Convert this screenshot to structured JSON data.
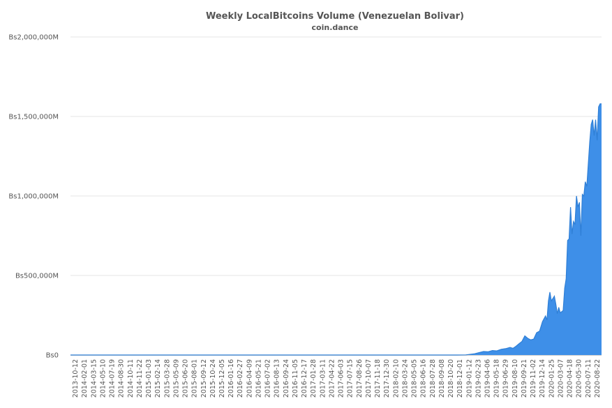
{
  "chart_data": {
    "type": "area",
    "title": "Weekly LocalBitcoins Volume (Venezuelan Bolivar)",
    "subtitle": "coin.dance",
    "xlabel": "",
    "ylabel": "",
    "ylim": [
      0,
      2000000000
    ],
    "y_ticks": [
      {
        "value": 0,
        "label": "Bs0"
      },
      {
        "value": 500000000,
        "label": "Bs500,000M"
      },
      {
        "value": 1000000000,
        "label": "Bs1,000,000M"
      },
      {
        "value": 1500000000,
        "label": "Bs1,500,000M"
      },
      {
        "value": 2000000000,
        "label": "Bs2,000,000M"
      }
    ],
    "x_range": [
      "2013-10-12",
      "2020-09-05"
    ],
    "x_tick_labels": [
      "2013-10-12",
      "2014-02-01",
      "2014-03-15",
      "2014-05-10",
      "2014-07-19",
      "2014-08-30",
      "2014-10-11",
      "2014-11-22",
      "2015-01-03",
      "2015-02-14",
      "2015-03-28",
      "2015-05-09",
      "2015-06-20",
      "2015-08-01",
      "2015-09-12",
      "2015-10-24",
      "2015-12-05",
      "2016-01-16",
      "2016-02-27",
      "2016-04-09",
      "2016-05-21",
      "2016-07-02",
      "2016-08-13",
      "2016-09-24",
      "2016-11-05",
      "2016-12-17",
      "2017-01-28",
      "2017-03-11",
      "2017-04-22",
      "2017-06-03",
      "2017-07-15",
      "2017-08-26",
      "2017-10-07",
      "2017-11-18",
      "2017-12-30",
      "2018-02-10",
      "2018-03-24",
      "2018-05-05",
      "2018-06-16",
      "2018-07-28",
      "2018-09-08",
      "2018-10-20",
      "2018-12-01",
      "2019-01-12",
      "2019-02-23",
      "2019-04-06",
      "2019-05-18",
      "2019-06-29",
      "2019-08-10",
      "2019-09-21",
      "2019-11-02",
      "2019-12-14",
      "2020-01-25",
      "2020-03-07",
      "2020-04-18",
      "2020-05-30",
      "2020-07-11",
      "2020-08-22"
    ],
    "grid": true,
    "legend": "none",
    "colors": {
      "area": "#3e8fe8",
      "line": "#2f7fd6"
    },
    "series": [
      {
        "points": [
          [
            "2013-10-12",
            0
          ],
          [
            "2018-10-20",
            0
          ],
          [
            "2018-12-01",
            1000000
          ],
          [
            "2019-01-12",
            8000000
          ],
          [
            "2019-02-02",
            15000000
          ],
          [
            "2019-02-23",
            22000000
          ],
          [
            "2019-03-16",
            20000000
          ],
          [
            "2019-04-06",
            28000000
          ],
          [
            "2019-04-27",
            26000000
          ],
          [
            "2019-05-18",
            36000000
          ],
          [
            "2019-06-08",
            40000000
          ],
          [
            "2019-06-29",
            48000000
          ],
          [
            "2019-07-13",
            42000000
          ],
          [
            "2019-07-27",
            55000000
          ],
          [
            "2019-08-10",
            70000000
          ],
          [
            "2019-08-24",
            85000000
          ],
          [
            "2019-09-07",
            120000000
          ],
          [
            "2019-09-21",
            105000000
          ],
          [
            "2019-10-05",
            95000000
          ],
          [
            "2019-10-19",
            100000000
          ],
          [
            "2019-11-02",
            140000000
          ],
          [
            "2019-11-16",
            150000000
          ],
          [
            "2019-11-30",
            210000000
          ],
          [
            "2019-12-14",
            245000000
          ],
          [
            "2019-12-21",
            220000000
          ],
          [
            "2019-12-28",
            340000000
          ],
          [
            "2020-01-04",
            395000000
          ],
          [
            "2020-01-11",
            340000000
          ],
          [
            "2020-01-25",
            370000000
          ],
          [
            "2020-02-01",
            320000000
          ],
          [
            "2020-02-08",
            260000000
          ],
          [
            "2020-02-15",
            300000000
          ],
          [
            "2020-02-22",
            265000000
          ],
          [
            "2020-03-07",
            280000000
          ],
          [
            "2020-03-14",
            420000000
          ],
          [
            "2020-03-21",
            480000000
          ],
          [
            "2020-03-28",
            720000000
          ],
          [
            "2020-04-04",
            730000000
          ],
          [
            "2020-04-11",
            930000000
          ],
          [
            "2020-04-18",
            760000000
          ],
          [
            "2020-04-25",
            840000000
          ],
          [
            "2020-05-02",
            820000000
          ],
          [
            "2020-05-09",
            1000000000
          ],
          [
            "2020-05-16",
            930000000
          ],
          [
            "2020-05-23",
            960000000
          ],
          [
            "2020-05-30",
            750000000
          ],
          [
            "2020-06-06",
            1010000000
          ],
          [
            "2020-06-13",
            1000000000
          ],
          [
            "2020-06-20",
            1090000000
          ],
          [
            "2020-06-27",
            1060000000
          ],
          [
            "2020-07-04",
            1200000000
          ],
          [
            "2020-07-11",
            1340000000
          ],
          [
            "2020-07-18",
            1450000000
          ],
          [
            "2020-07-25",
            1480000000
          ],
          [
            "2020-08-01",
            1380000000
          ],
          [
            "2020-08-08",
            1480000000
          ],
          [
            "2020-08-15",
            1350000000
          ],
          [
            "2020-08-22",
            1560000000
          ],
          [
            "2020-08-29",
            1580000000
          ],
          [
            "2020-09-05",
            1580000000
          ]
        ]
      }
    ]
  }
}
